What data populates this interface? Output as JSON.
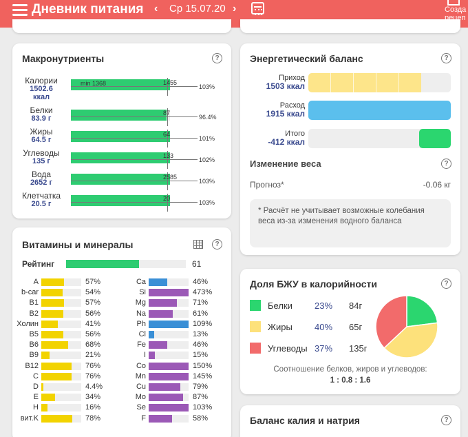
{
  "header": {
    "title": "Дневник питания",
    "date": "Ср 15.07.20",
    "create_line1": "Созда",
    "create_line2": "рецеп",
    "prev": "‹",
    "next": "›"
  },
  "macro": {
    "title": "Макронутриенты",
    "help": "?",
    "min_label": "min 1368",
    "rows": [
      {
        "label": "Калории",
        "value_l1": "1502.6",
        "value_l2": "ккал",
        "norm": "1455",
        "pct": "103%",
        "fill": 1.0
      },
      {
        "label": "Белки",
        "value_l1": "83.9 г",
        "norm": "87",
        "pct": "96.4%",
        "fill": 0.964
      },
      {
        "label": "Жиры",
        "value_l1": "64.5 г",
        "norm": "64",
        "pct": "101%",
        "fill": 1.0
      },
      {
        "label": "Углеводы",
        "value_l1": "135 г",
        "norm": "133",
        "pct": "102%",
        "fill": 1.0
      },
      {
        "label": "Вода",
        "value_l1": "2652 г",
        "norm": "2585",
        "pct": "103%",
        "fill": 1.0
      },
      {
        "label": "Клетчатка",
        "value_l1": "20.5 г",
        "norm": "20",
        "pct": "103%",
        "fill": 1.0
      }
    ]
  },
  "vitamins": {
    "title": "Витамины и минералы",
    "help": "?",
    "rating_label": "Рейтинг",
    "rating_value": "61",
    "rating_fill": 0.61,
    "colors": {
      "vitamin": "#f2d300",
      "mineral_blue": "#3a8fd6",
      "mineral_purple": "#9b59b6",
      "rating": "#2ecc71"
    },
    "left": [
      {
        "name": "A",
        "pct": "57%",
        "v": 0.57
      },
      {
        "name": "b-car",
        "pct": "54%",
        "v": 0.54
      },
      {
        "name": "B1",
        "pct": "57%",
        "v": 0.57
      },
      {
        "name": "B2",
        "pct": "56%",
        "v": 0.56
      },
      {
        "name": "Холин",
        "pct": "41%",
        "v": 0.41
      },
      {
        "name": "B5",
        "pct": "56%",
        "v": 0.56
      },
      {
        "name": "B6",
        "pct": "68%",
        "v": 0.68
      },
      {
        "name": "B9",
        "pct": "21%",
        "v": 0.21
      },
      {
        "name": "B12",
        "pct": "76%",
        "v": 0.76
      },
      {
        "name": "C",
        "pct": "76%",
        "v": 0.76
      },
      {
        "name": "D",
        "pct": "4.4%",
        "v": 0.044
      },
      {
        "name": "E",
        "pct": "34%",
        "v": 0.34
      },
      {
        "name": "H",
        "pct": "16%",
        "v": 0.16
      },
      {
        "name": "вит.K",
        "pct": "78%",
        "v": 0.78
      }
    ],
    "right": [
      {
        "name": "Ca",
        "pct": "46%",
        "v": 0.46,
        "c": "blue"
      },
      {
        "name": "Si",
        "pct": "473%",
        "v": 1.0,
        "c": "purple"
      },
      {
        "name": "Mg",
        "pct": "71%",
        "v": 0.71,
        "c": "purple"
      },
      {
        "name": "Na",
        "pct": "61%",
        "v": 0.61,
        "c": "purple"
      },
      {
        "name": "Ph",
        "pct": "109%",
        "v": 1.0,
        "c": "blue"
      },
      {
        "name": "Cl",
        "pct": "13%",
        "v": 0.13,
        "c": "blue"
      },
      {
        "name": "Fe",
        "pct": "46%",
        "v": 0.46,
        "c": "purple"
      },
      {
        "name": "I",
        "pct": "15%",
        "v": 0.15,
        "c": "purple"
      },
      {
        "name": "Co",
        "pct": "150%",
        "v": 1.0,
        "c": "purple"
      },
      {
        "name": "Mn",
        "pct": "145%",
        "v": 1.0,
        "c": "purple"
      },
      {
        "name": "Cu",
        "pct": "79%",
        "v": 0.79,
        "c": "purple"
      },
      {
        "name": "Mo",
        "pct": "87%",
        "v": 0.87,
        "c": "purple"
      },
      {
        "name": "Se",
        "pct": "103%",
        "v": 1.0,
        "c": "purple"
      },
      {
        "name": "F",
        "pct": "58%",
        "v": 0.58,
        "c": "purple"
      }
    ]
  },
  "energy": {
    "title": "Энергетический баланс",
    "help": "?",
    "income_label": "Приход",
    "income_value": "1503 ккал",
    "income_fill": 0.79,
    "expense_label": "Расход",
    "expense_value": "1915 ккал",
    "expense_fill": 1.0,
    "total_label": "Итого",
    "total_value": "-412 ккал",
    "total_fill": 0.22,
    "weight_title": "Изменение веса",
    "forecast_label": "Прогноз*",
    "forecast_value": "-0.06 кг",
    "note": "* Расчёт не учитывает возможные колебания веса из-за изменения водного баланса",
    "colors": {
      "income": "#fde58a",
      "expense": "#5bbfed",
      "total": "#2bd66f"
    }
  },
  "bju": {
    "title": "Доля БЖУ в калорийности",
    "help": "?",
    "items": [
      {
        "name": "Белки",
        "pct": "23%",
        "grams": "84г",
        "color": "#2bd66f",
        "share": 23
      },
      {
        "name": "Жиры",
        "pct": "40%",
        "grams": "65г",
        "color": "#fde17b",
        "share": 40
      },
      {
        "name": "Углеводы",
        "pct": "37%",
        "grams": "135г",
        "color": "#f26b6b",
        "share": 37
      }
    ],
    "ratio_label": "Соотношение белков, жиров и углеводов:",
    "ratio_value": "1 : 0.8 : 1.6"
  },
  "kna": {
    "title": "Баланс калия и натрия",
    "help": "?"
  }
}
